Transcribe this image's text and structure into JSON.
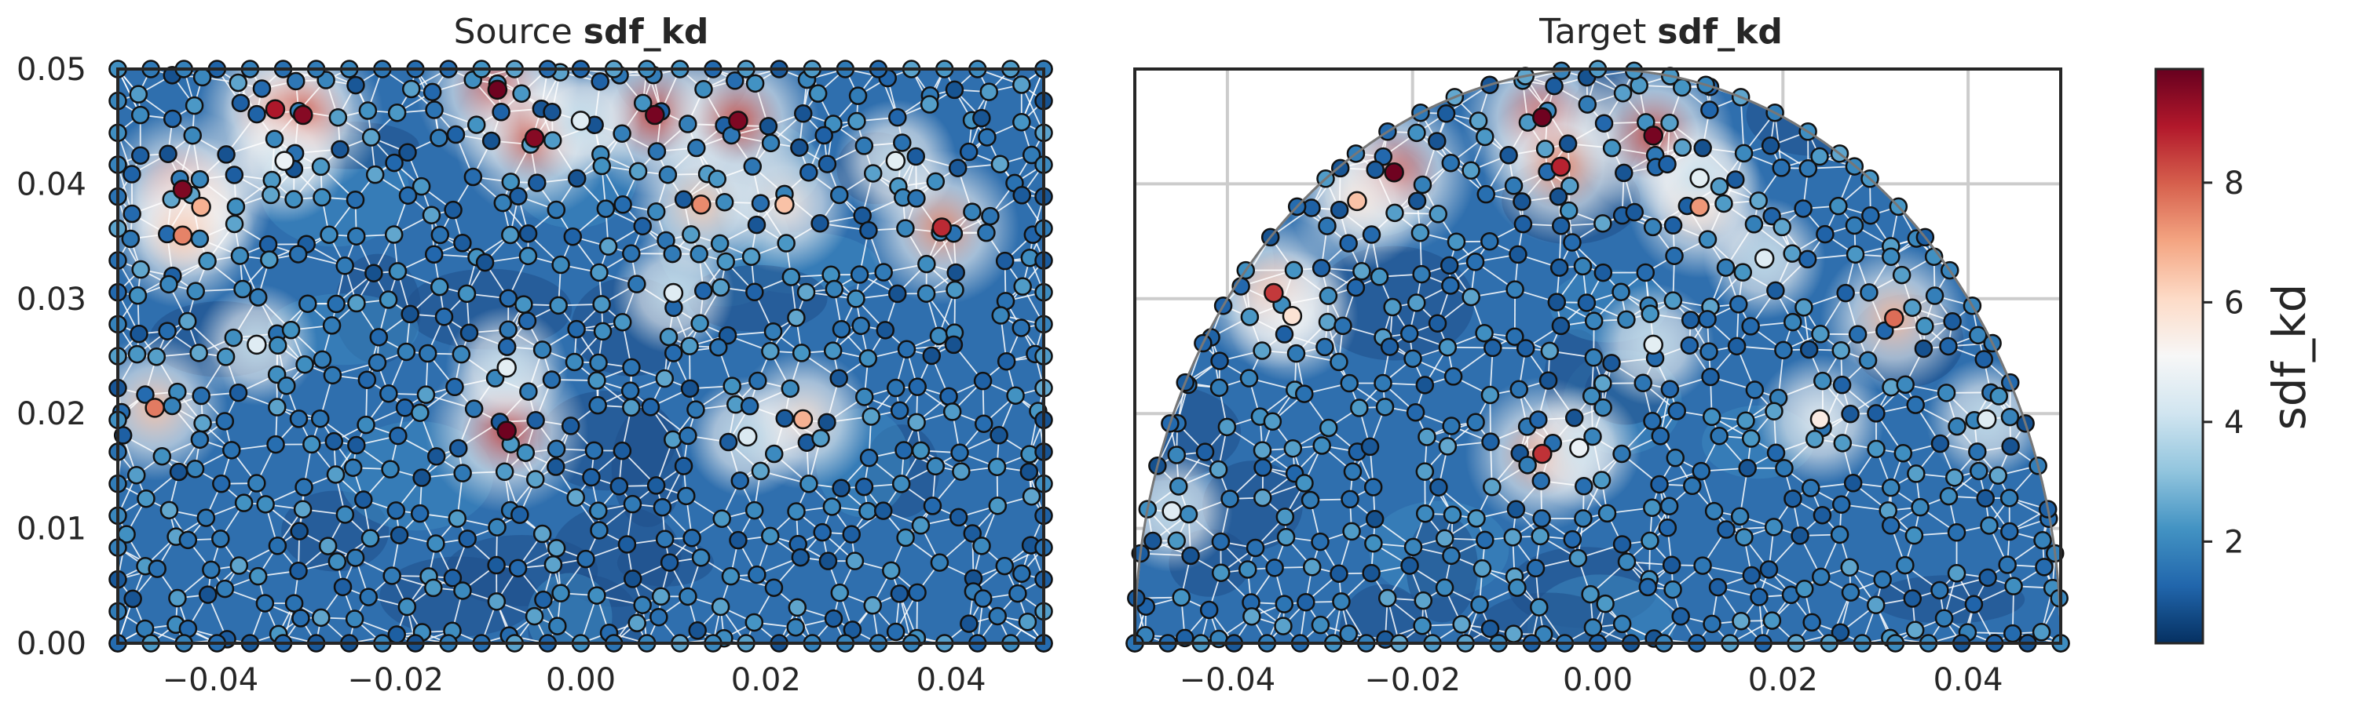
{
  "chart_data": [
    {
      "type": "mesh-scatter",
      "title_prefix": "Source",
      "title_field": "sdf_kd",
      "domain": "rectangle",
      "xlim": [
        -0.05,
        0.05
      ],
      "ylim": [
        0.0,
        0.05
      ],
      "xticks": [
        "−0.04",
        "−0.02",
        "0.00",
        "0.02",
        "0.04"
      ],
      "yticks": [
        "0.00",
        "0.01",
        "0.02",
        "0.03",
        "0.04",
        "0.05"
      ],
      "grid": false,
      "hot_nodes": [
        {
          "x": -0.033,
          "y": 0.0465,
          "v": 9.0
        },
        {
          "x": -0.03,
          "y": 0.046,
          "v": 9.5
        },
        {
          "x": -0.009,
          "y": 0.0482,
          "v": 9.8
        },
        {
          "x": -0.005,
          "y": 0.044,
          "v": 9.5
        },
        {
          "x": 0.008,
          "y": 0.046,
          "v": 9.7
        },
        {
          "x": 0.017,
          "y": 0.0455,
          "v": 9.6
        },
        {
          "x": -0.043,
          "y": 0.0395,
          "v": 9.6
        },
        {
          "x": -0.041,
          "y": 0.038,
          "v": 6.8
        },
        {
          "x": -0.043,
          "y": 0.0355,
          "v": 7.5
        },
        {
          "x": 0.013,
          "y": 0.0382,
          "v": 7.4
        },
        {
          "x": 0.022,
          "y": 0.0382,
          "v": 6.5
        },
        {
          "x": 0.039,
          "y": 0.0362,
          "v": 8.7
        },
        {
          "x": -0.046,
          "y": 0.0205,
          "v": 7.6
        },
        {
          "x": -0.008,
          "y": 0.0185,
          "v": 9.8
        },
        {
          "x": 0.024,
          "y": 0.0195,
          "v": 6.8
        },
        {
          "x": 0.0,
          "y": 0.0455,
          "v": 4.5
        },
        {
          "x": -0.032,
          "y": 0.042,
          "v": 4.8
        },
        {
          "x": 0.034,
          "y": 0.042,
          "v": 4.6
        },
        {
          "x": -0.008,
          "y": 0.024,
          "v": 4.6
        },
        {
          "x": 0.01,
          "y": 0.0305,
          "v": 4.5
        },
        {
          "x": 0.018,
          "y": 0.018,
          "v": 4.4
        },
        {
          "x": -0.035,
          "y": 0.026,
          "v": 4.5
        }
      ]
    },
    {
      "type": "mesh-scatter",
      "title_prefix": "Target",
      "title_field": "sdf_kd",
      "domain": "half-disk",
      "xlim": [
        -0.05,
        0.05
      ],
      "ylim": [
        0.0,
        0.05
      ],
      "xticks": [
        "−0.04",
        "−0.02",
        "0.00",
        "0.02",
        "0.04"
      ],
      "grid": true,
      "hot_nodes": [
        {
          "x": -0.006,
          "y": 0.0458,
          "v": 9.8
        },
        {
          "x": -0.004,
          "y": 0.0415,
          "v": 8.8
        },
        {
          "x": 0.006,
          "y": 0.0442,
          "v": 9.7
        },
        {
          "x": -0.022,
          "y": 0.041,
          "v": 9.8
        },
        {
          "x": -0.026,
          "y": 0.0385,
          "v": 6.5
        },
        {
          "x": 0.011,
          "y": 0.038,
          "v": 7.2
        },
        {
          "x": -0.035,
          "y": 0.0305,
          "v": 8.5
        },
        {
          "x": -0.033,
          "y": 0.0285,
          "v": 5.8
        },
        {
          "x": 0.032,
          "y": 0.0283,
          "v": 7.8
        },
        {
          "x": 0.024,
          "y": 0.0195,
          "v": 5.5
        },
        {
          "x": -0.006,
          "y": 0.0165,
          "v": 8.6
        },
        {
          "x": -0.002,
          "y": 0.017,
          "v": 4.8
        },
        {
          "x": 0.011,
          "y": 0.0405,
          "v": 4.6
        },
        {
          "x": 0.018,
          "y": 0.0335,
          "v": 4.5
        },
        {
          "x": 0.006,
          "y": 0.026,
          "v": 4.6
        },
        {
          "x": -0.046,
          "y": 0.0115,
          "v": 4.5
        },
        {
          "x": 0.042,
          "y": 0.0195,
          "v": 4.5
        }
      ]
    }
  ],
  "colorbar": {
    "label": "sdf_kd",
    "ticks": [
      "2",
      "4",
      "6",
      "8"
    ],
    "tick_values": [
      2,
      4,
      6,
      8
    ],
    "vmin": 0.3,
    "vmax": 9.9,
    "colormap": "RdBu_r"
  }
}
